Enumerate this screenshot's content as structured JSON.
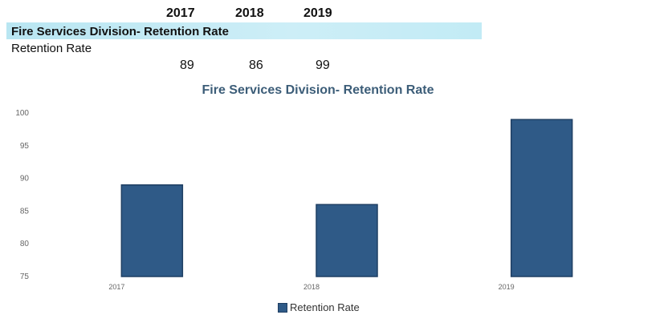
{
  "table": {
    "years": [
      "2017",
      "2018",
      "2019"
    ],
    "section_title": "Fire Services Division- Retention Rate",
    "row_label": "Retention Rate",
    "values": [
      "89",
      "86",
      "99"
    ]
  },
  "chart_data": {
    "type": "bar",
    "title": "Fire Services Division- Retention Rate",
    "categories": [
      "2017",
      "2018",
      "2019"
    ],
    "series": [
      {
        "name": "Retention Rate",
        "values": [
          89,
          86,
          99
        ]
      }
    ],
    "ylim": [
      75,
      100
    ],
    "yticks": [
      75,
      80,
      85,
      90,
      95,
      100
    ],
    "grid": false,
    "legend_position": "bottom",
    "colors": {
      "bar": "#2f5a87",
      "bar_edge": "#1f3f63",
      "axis_text": "#666666",
      "title": "#3c5d78"
    }
  }
}
